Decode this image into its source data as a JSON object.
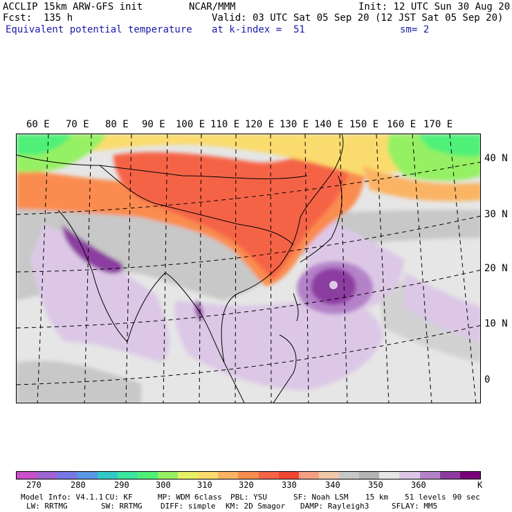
{
  "header": {
    "model": "ACCLIP 15km ARW-GFS init",
    "forecast": "Fcst:  135 h",
    "field": "Equivalent potential temperature",
    "center": "NCAR/MMM",
    "valid": "Valid: 03 UTC Sat 05 Sep 20 (12 JST Sat 05 Sep 20)",
    "init": "Init: 12 UTC Sun 30 Aug 20",
    "level": "at k-index =  51",
    "smoothing": "sm= 2"
  },
  "map": {
    "lon_labels": [
      "60 E",
      "70 E",
      "80 E",
      "90 E",
      "100 E",
      "110 E",
      "120 E",
      "130 E",
      "140 E",
      "150 E",
      "160 E",
      "170 E"
    ],
    "lat_labels": [
      "40 N",
      "30 N",
      "20 N",
      "10 N",
      "0"
    ]
  },
  "colorbar": {
    "colors": [
      "#c850c8",
      "#a064d2",
      "#7878e6",
      "#5a96e6",
      "#32c8c8",
      "#3ce6a0",
      "#50f078",
      "#96f064",
      "#e6f064",
      "#fadc6e",
      "#fab464",
      "#fa8c50",
      "#f56446",
      "#f04632",
      "#f5a082",
      "#f0c8aa",
      "#c8c8c8",
      "#b4b4b4",
      "#e6e6e6",
      "#dcc8e6",
      "#b482c8",
      "#8c3ca0",
      "#780078"
    ],
    "labels": [
      "270",
      "280",
      "290",
      "300",
      "310",
      "320",
      "330",
      "340",
      "350",
      "360"
    ],
    "unit": "K"
  },
  "model_info": {
    "line1": [
      "Model Info: V4.1.1",
      "CU: KF",
      "MP: WDM 6class",
      "PBL: YSU",
      "SF: Noah LSM",
      "15 km",
      "51 levels",
      "90 sec"
    ],
    "line2": [
      "LW: RRTMG",
      "SW: RRTMG",
      "DIFF: simple",
      "KM: 2D Smagor",
      "DAMP: Rayleigh3",
      "SFLAY: MM5"
    ]
  }
}
